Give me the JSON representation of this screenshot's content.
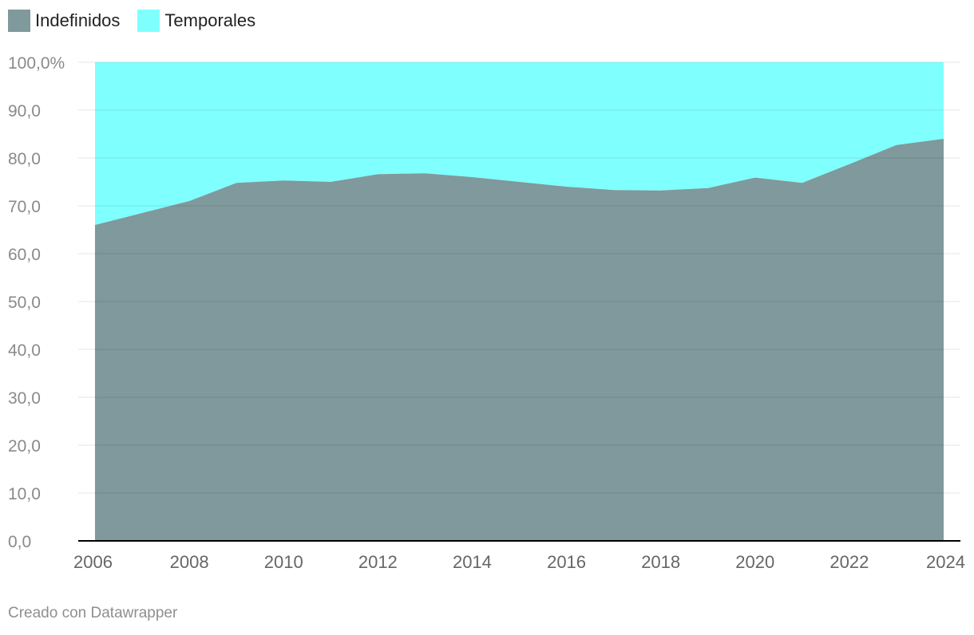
{
  "chart_data": {
    "type": "area",
    "stacked": true,
    "title": "",
    "xlabel": "",
    "ylabel": "",
    "x": [
      2006,
      2007,
      2008,
      2009,
      2010,
      2011,
      2012,
      2013,
      2014,
      2015,
      2016,
      2017,
      2018,
      2019,
      2020,
      2021,
      2022,
      2023,
      2024
    ],
    "series": [
      {
        "name": "Indefinidos",
        "color": "#7f999c",
        "values": [
          66.0,
          68.5,
          71.0,
          74.8,
          75.3,
          75.0,
          76.6,
          76.8,
          76.0,
          75.0,
          74.0,
          73.3,
          73.2,
          73.7,
          75.9,
          74.8,
          78.7,
          82.7,
          84.0
        ]
      },
      {
        "name": "Temporales",
        "color": "#80ffff",
        "values": [
          34.0,
          31.5,
          29.0,
          25.2,
          24.7,
          25.0,
          23.4,
          23.2,
          24.0,
          25.0,
          26.0,
          26.7,
          26.8,
          26.3,
          24.1,
          25.2,
          21.3,
          17.3,
          16.0
        ]
      }
    ],
    "ylim": [
      0,
      100
    ],
    "yticks": [
      0,
      10,
      20,
      30,
      40,
      50,
      60,
      70,
      80,
      90,
      100
    ],
    "ytick_labels": [
      "0,0",
      "10,0",
      "20,0",
      "30,0",
      "40,0",
      "50,0",
      "60,0",
      "70,0",
      "80,0",
      "90,0",
      "100,0%"
    ],
    "xticks": [
      2006,
      2008,
      2010,
      2012,
      2014,
      2016,
      2018,
      2020,
      2022,
      2024
    ],
    "xtick_labels": [
      "2006",
      "2008",
      "2010",
      "2012",
      "2014",
      "2016",
      "2018",
      "2020",
      "2022",
      "2024"
    ],
    "grid": true,
    "legend_position": "top-left"
  },
  "legend": {
    "items": [
      {
        "label": "Indefinidos",
        "color": "#7f999c"
      },
      {
        "label": "Temporales",
        "color": "#80ffff"
      }
    ]
  },
  "footer": {
    "credit": "Creado con Datawrapper"
  }
}
